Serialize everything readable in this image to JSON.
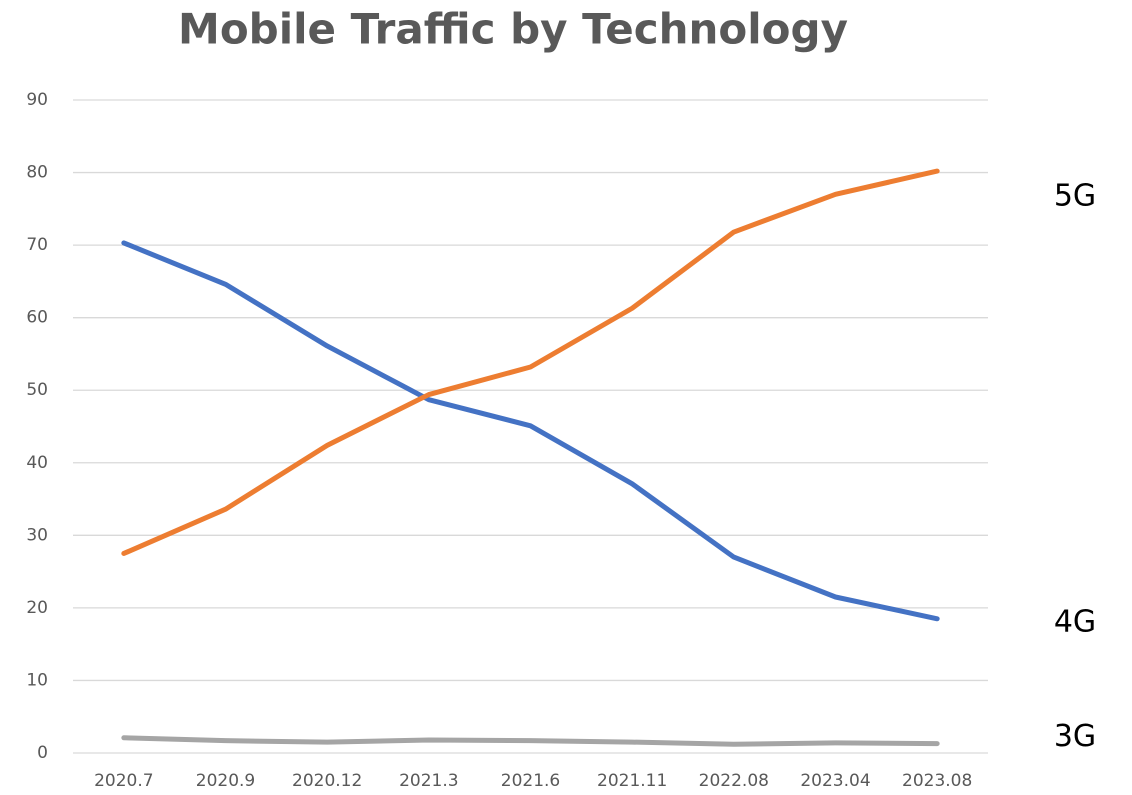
{
  "chart_data": {
    "type": "line",
    "title": "Mobile Traffic by Technology",
    "categories": [
      "2020.7",
      "2020.9",
      "2020.12",
      "2021.3",
      "2021.6",
      "2021.11",
      "2022.08",
      "2023.04",
      "2023.08"
    ],
    "series": [
      {
        "name": "4G",
        "color": "#4472c4",
        "values": [
          70.3,
          64.6,
          56.1,
          48.7,
          45.1,
          37.1,
          27.0,
          21.5,
          18.5
        ]
      },
      {
        "name": "5G",
        "color": "#ed7d31",
        "values": [
          27.5,
          33.6,
          42.4,
          49.4,
          53.2,
          61.3,
          71.8,
          77.0,
          80.2
        ]
      },
      {
        "name": "3G",
        "color": "#a5a5a5",
        "values": [
          2.1,
          1.7,
          1.5,
          1.8,
          1.7,
          1.5,
          1.2,
          1.4,
          1.3
        ]
      }
    ],
    "ylim": [
      0,
      90
    ],
    "yticks": [
      0,
      10,
      20,
      30,
      40,
      50,
      60,
      70,
      80,
      90
    ],
    "grid": true
  }
}
